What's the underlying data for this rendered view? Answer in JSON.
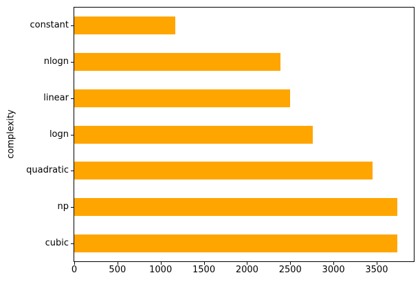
{
  "chart_data": {
    "type": "bar",
    "orientation": "horizontal",
    "title": "",
    "xlabel": "",
    "ylabel": "complexity",
    "categories": [
      "constant",
      "nlogn",
      "linear",
      "logn",
      "quadratic",
      "np",
      "cubic"
    ],
    "values": [
      1170,
      2385,
      2495,
      2760,
      3450,
      3740,
      3740
    ],
    "xticks": [
      0,
      500,
      1000,
      1500,
      2000,
      2500,
      3000,
      3500
    ],
    "xlim": [
      0,
      3930
    ],
    "grid": false,
    "legend": null,
    "bar_color": "#FFA500",
    "axis_color": "#000000",
    "text_color": "#000000",
    "background_color": "#ffffff"
  }
}
